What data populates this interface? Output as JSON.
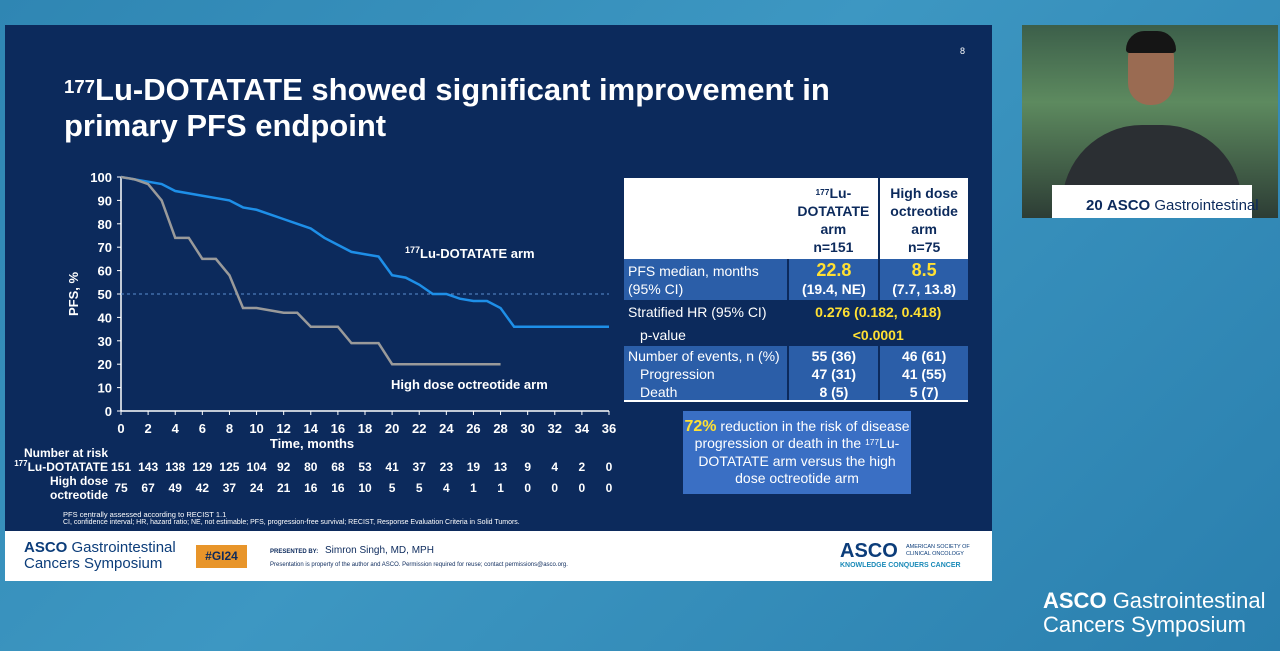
{
  "slide_number": "8",
  "title": {
    "sup": "177",
    "line1": "Lu-DOTATATE showed significant improvement in",
    "line2": "primary PFS endpoint"
  },
  "chart_data": {
    "type": "line",
    "y_label": "PFS, %",
    "x_label": "Time, months",
    "x": [
      0,
      1,
      2,
      3,
      4,
      5,
      6,
      7,
      8,
      9,
      10,
      11,
      12,
      13,
      14,
      15,
      16,
      17,
      18,
      19,
      20,
      21,
      22,
      23,
      24,
      25,
      26,
      27,
      28,
      29,
      30,
      31,
      32,
      33,
      34,
      35,
      36
    ],
    "series": [
      {
        "name_sup": "177",
        "name": "Lu-DOTATATE arm",
        "color": "#1e8fe8",
        "values": [
          100,
          99,
          98,
          97,
          94,
          93,
          92,
          91,
          90,
          87,
          86,
          84,
          82,
          80,
          78,
          74,
          71,
          68,
          67,
          66,
          58,
          57,
          54,
          50,
          50,
          48,
          47,
          47,
          44,
          36,
          36,
          36,
          36,
          36,
          36,
          36,
          36
        ]
      },
      {
        "name": "High dose octreotide arm",
        "color": "#9a9a9a",
        "values": [
          100,
          99,
          97,
          90,
          74,
          74,
          65,
          65,
          58,
          44,
          44,
          43,
          42,
          42,
          36,
          36,
          36,
          29,
          29,
          29,
          20,
          20,
          20,
          20,
          20,
          20,
          20,
          20,
          20,
          null,
          null,
          null,
          null,
          null,
          null,
          null,
          null
        ]
      }
    ],
    "reference_line": 50,
    "xlim": [
      0,
      36
    ],
    "xticks": [
      0,
      2,
      4,
      6,
      8,
      10,
      12,
      14,
      16,
      18,
      20,
      22,
      24,
      26,
      28,
      30,
      32,
      34,
      36
    ],
    "ylim": [
      0,
      100
    ],
    "yticks": [
      0,
      10,
      20,
      30,
      40,
      50,
      60,
      70,
      80,
      90,
      100
    ],
    "at_risk": {
      "title": "Number at risk",
      "rows": [
        {
          "label_sup": "177",
          "label": [
            "Lu-DOTATATE"
          ],
          "values": [
            151,
            143,
            138,
            129,
            125,
            104,
            92,
            80,
            68,
            53,
            41,
            37,
            23,
            19,
            13,
            9,
            4,
            2,
            0
          ]
        },
        {
          "label": [
            "High dose",
            "octreotide"
          ],
          "values": [
            75,
            67,
            49,
            42,
            37,
            24,
            21,
            16,
            16,
            10,
            5,
            5,
            4,
            1,
            1,
            0,
            0,
            0,
            0
          ]
        }
      ]
    }
  },
  "table": {
    "columns": [
      {
        "sup": "177",
        "name": [
          "Lu-",
          "DOTATATE",
          "arm"
        ],
        "n": "n=151"
      },
      {
        "name": [
          "High dose",
          "octreotide",
          "arm"
        ],
        "n": "n=75"
      }
    ],
    "pfs": {
      "label": [
        "PFS median, months",
        "(95% CI)"
      ],
      "values": [
        "22.8",
        "8.5"
      ],
      "ci": [
        "(19.4, NE)",
        "(7.7, 13.8)"
      ]
    },
    "hr": {
      "label": "Stratified HR (95% CI)",
      "value": "0.276 (0.182, 0.418)",
      "p_label": "p-value",
      "p_value": "<0.0001"
    },
    "events": {
      "rows": [
        [
          "Number of events, n (%)",
          "55 (36)",
          "46 (61)"
        ],
        [
          "Progression",
          "47 (31)",
          "41 (55)"
        ],
        [
          "Death",
          "8 (5)",
          "5 (7)"
        ]
      ]
    }
  },
  "callout": {
    "highlight": "72%",
    "text1": " reduction in the risk of disease progression or death in the ",
    "sup": "177",
    "text2": "Lu-DOTATATE arm versus the high dose octreotide arm"
  },
  "footnotes": [
    "PFS centrally assessed according to RECIST 1.1",
    "CI, confidence interval; HR, hazard ratio; NE, not estimable; PFS, progression-free survival; RECIST, Response Evaluation Criteria in Solid Tumors."
  ],
  "footer": {
    "logo": [
      "ASCO",
      "Gastrointestinal",
      "Cancers Symposium"
    ],
    "hashtag": "#GI24",
    "presented_by": "PRESENTED BY:",
    "presenter": "Simron Singh, MD, MPH",
    "disclaimer": "Presentation is property of the author and ASCO. Permission required for reuse; contact permissions@asco.org.",
    "asco": "ASCO",
    "society": [
      "AMERICAN SOCIETY OF",
      "CLINICAL ONCOLOGY"
    ],
    "tagline": "KNOWLEDGE CONQUERS CANCER"
  },
  "video": {
    "podium": [
      "20",
      "ASCO",
      "Gastrointestinal"
    ]
  },
  "watermark": {
    "line1": [
      "ASCO",
      "Gastrointestinal"
    ],
    "line2": "Cancers Symposium"
  }
}
